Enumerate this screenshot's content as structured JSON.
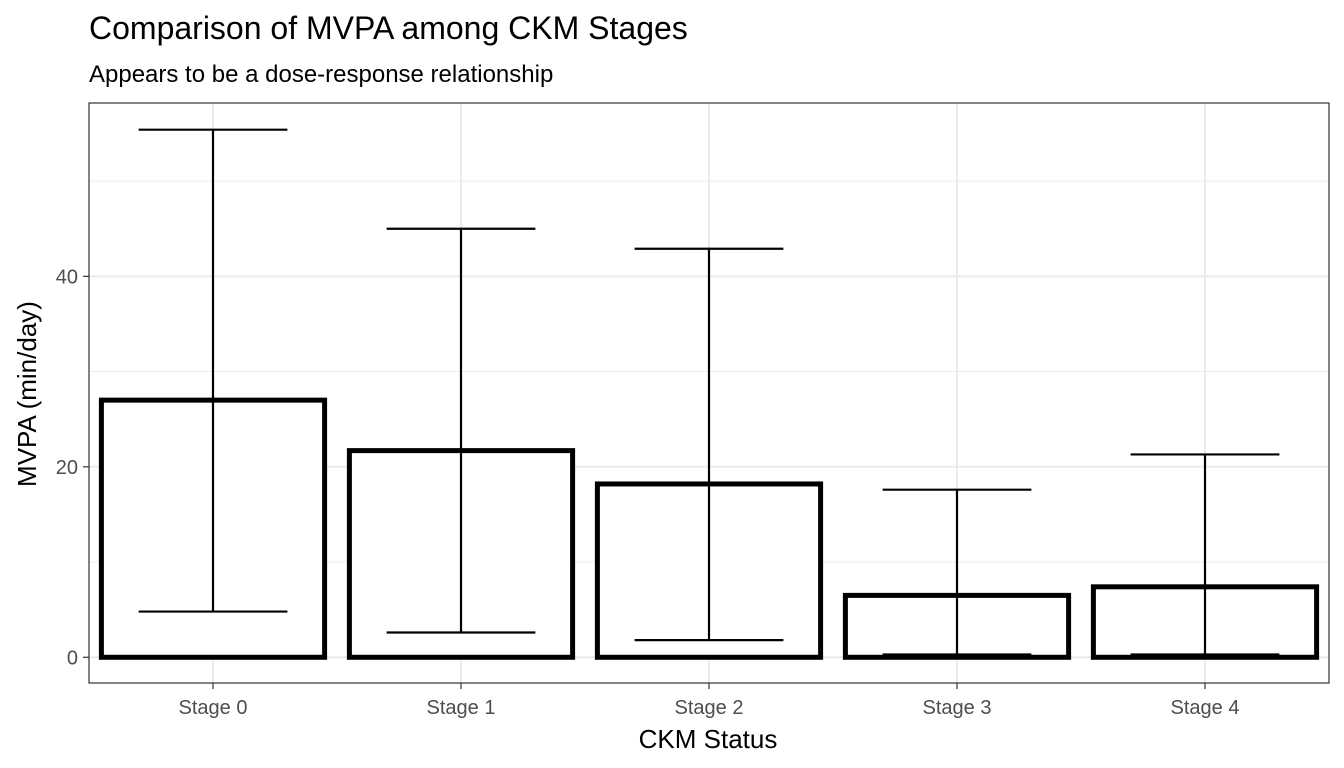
{
  "chart_data": {
    "type": "bar",
    "title": "Comparison of MVPA among CKM Stages",
    "subtitle": "Appears to be a dose-response relationship",
    "xlabel": "CKM Status",
    "ylabel": "MVPA (min/day)",
    "categories": [
      "Stage 0",
      "Stage 1",
      "Stage 2",
      "Stage 3",
      "Stage 4"
    ],
    "values": [
      27.0,
      21.7,
      18.2,
      6.5,
      7.4
    ],
    "error_low": [
      4.8,
      2.6,
      1.8,
      0.3,
      0.3
    ],
    "error_high": [
      55.4,
      45.0,
      42.9,
      17.6,
      21.3
    ],
    "ylim": [
      -2.7,
      58.2
    ],
    "y_ticks": [
      0,
      20,
      40
    ],
    "grid": true,
    "theme": "bw",
    "bar_fill": "#ffffff",
    "bar_outline": "#000000"
  }
}
